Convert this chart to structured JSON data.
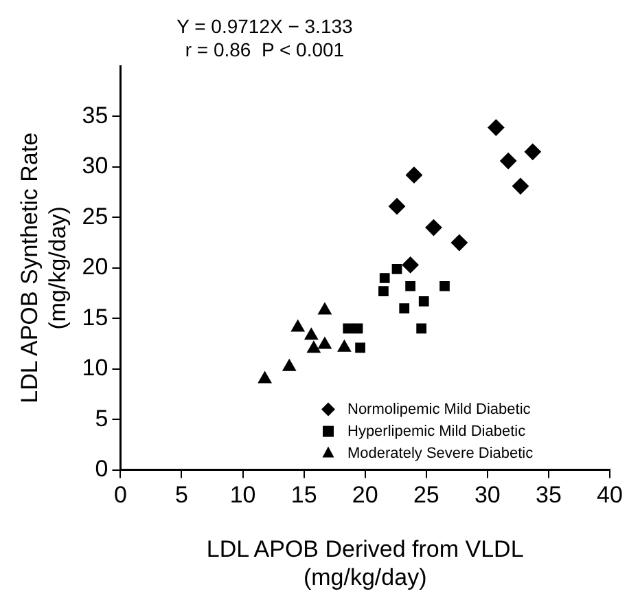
{
  "chart_data": {
    "type": "scatter",
    "xlabel": "LDL APOB Derived from VLDL\n(mg/kg/day)",
    "ylabel": "LDL APOB Synthetic Rate\n(mg/kg/day)",
    "annotations": [
      "Y = 0.9712X − 3.133",
      "r = 0.86  P < 0.001"
    ],
    "xlim": [
      0,
      40
    ],
    "xticks": [
      0,
      5,
      10,
      15,
      20,
      25,
      30,
      35,
      40
    ],
    "ylim": [
      0,
      40
    ],
    "yticks": [
      0,
      5,
      10,
      15,
      20,
      25,
      30,
      35
    ],
    "grid": false,
    "legend": "bottom right",
    "series": [
      {
        "name": "Normolipemic Mild Diabetic",
        "color": "#000000",
        "marker": "diamond",
        "x": [
          30.7,
          31.7,
          33.7,
          32.7,
          24.0,
          22.6,
          25.6,
          27.7,
          23.7
        ],
        "values": [
          33.9,
          30.6,
          31.5,
          28.1,
          29.2,
          26.1,
          24.0,
          22.5,
          20.3
        ]
      },
      {
        "name": "Hyperlipemic Mild Diabetic",
        "color": "#000000",
        "marker": "square",
        "x": [
          21.6,
          22.6,
          21.5,
          23.7,
          26.5,
          24.8,
          23.2,
          24.6,
          18.6,
          19.4,
          19.6
        ],
        "values": [
          19.0,
          19.9,
          17.7,
          18.2,
          18.2,
          16.7,
          16.0,
          14.0,
          14.0,
          14.0,
          12.1
        ]
      },
      {
        "name": "Moderately Severe Diabetic",
        "color": "#000000",
        "marker": "triangle",
        "x": [
          11.8,
          13.8,
          14.5,
          15.6,
          15.8,
          16.7,
          16.7,
          18.3
        ],
        "values": [
          9.0,
          10.2,
          14.1,
          13.3,
          12.0,
          15.8,
          12.4,
          12.1
        ]
      }
    ]
  }
}
